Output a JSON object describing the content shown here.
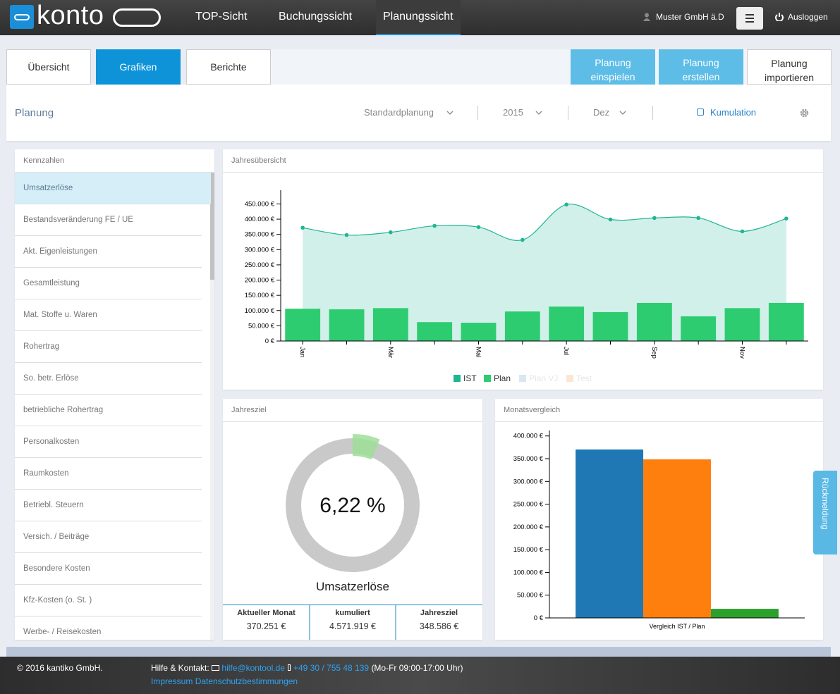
{
  "nav": {
    "brand": "konto",
    "items": [
      "TOP-Sicht",
      "Buchungssicht",
      "Planungssicht"
    ],
    "active": 2,
    "user": "Muster GmbH ä.D",
    "logout": "Ausloggen"
  },
  "tabs": {
    "items": [
      "Übersicht",
      "Grafiken",
      "Berichte"
    ],
    "active": 1
  },
  "actions": [
    {
      "lines": [
        "Planung",
        "einspielen"
      ]
    },
    {
      "lines": [
        "Planung",
        "erstellen"
      ]
    },
    {
      "lines": [
        "Planung",
        "importieren"
      ]
    }
  ],
  "filter": {
    "title": "Planung",
    "plan": "Standardplanung",
    "year": "2015",
    "month": "Dez",
    "cumulation": "Kumulation"
  },
  "sidebar": {
    "title": "Kennzahlen",
    "selected": 0,
    "items": [
      "Umsatzerlöse",
      "Bestandsveränderung FE / UE",
      "Akt. Eigenleistungen",
      "Gesamtleistung",
      "Mat. Stoffe u. Waren",
      "Rohertrag",
      "So. betr. Erlöse",
      "betriebliche Rohertrag",
      "Personalkosten",
      "Raumkosten",
      "Betriebl. Steuern",
      "Versich. / Beiträge",
      "Besondere Kosten",
      "Kfz-Kosten (o. St. )",
      "Werbe- / Reisekosten"
    ]
  },
  "chart_data": [
    {
      "type": "combo",
      "title": "Jahresübersicht",
      "categories": [
        "Jan",
        null,
        "Mär",
        null,
        "Mai",
        null,
        "Jul",
        null,
        "Sep",
        null,
        "Nov",
        null
      ],
      "series": [
        {
          "name": "IST",
          "type": "area",
          "color": "#1fb594",
          "values": [
            372000,
            348000,
            357000,
            378000,
            374000,
            332000,
            448000,
            399000,
            404000,
            404000,
            360000,
            402000
          ]
        },
        {
          "name": "Plan",
          "type": "bar",
          "color": "#2ecc71",
          "values": [
            106000,
            104000,
            108000,
            62000,
            60000,
            97000,
            113000,
            95000,
            125000,
            81000,
            108000,
            125000
          ]
        }
      ],
      "legend_disabled": [
        {
          "name": "Plan VJ",
          "color": "#d8e8f3"
        },
        {
          "name": "Test",
          "color": "#fbe6d4"
        }
      ],
      "ylim": [
        0,
        495000
      ],
      "yticks": [
        {
          "value": 0,
          "label": "0 €"
        },
        {
          "value": 50000,
          "label": "50.000 €"
        },
        {
          "value": 100000,
          "label": "100.000 €"
        },
        {
          "value": 150000,
          "label": "150.000 €"
        },
        {
          "value": 200000,
          "label": "200.000 €"
        },
        {
          "value": 250000,
          "label": "250.000 €"
        },
        {
          "value": 300000,
          "label": "300.000 €"
        },
        {
          "value": 350000,
          "label": "350.000 €"
        },
        {
          "value": 400000,
          "label": "400.000 €"
        },
        {
          "value": 450000,
          "label": "450.000 €"
        }
      ]
    },
    {
      "type": "gauge",
      "title": "Jahresziel",
      "value": 6.22,
      "value_label": "6,22 %",
      "label": "Umsatzerlöse",
      "ylim": [
        0,
        100
      ],
      "color": "#9ede96",
      "track_color": "#c9c9c9",
      "table": {
        "headers": [
          "Aktueller Monat",
          "kumuliert",
          "Jahresziel"
        ],
        "values": [
          "370.251 €",
          "4.571.919 €",
          "348.586 €"
        ]
      }
    },
    {
      "type": "bar",
      "title": "Monatsvergleich",
      "categories": [
        "Vergleich IST / Plan"
      ],
      "series": [
        {
          "color": "#1f77b4",
          "values": [
            370251
          ]
        },
        {
          "color": "#ff7f0e",
          "values": [
            348586
          ]
        },
        {
          "color": "#2ca02c",
          "values": [
            20000
          ]
        }
      ],
      "ylim": [
        0,
        412000
      ],
      "yticks": [
        {
          "value": 0,
          "label": "0 €"
        },
        {
          "value": 50000,
          "label": "50.000 €"
        },
        {
          "value": 100000,
          "label": "100.000 €"
        },
        {
          "value": 150000,
          "label": "150.000 €"
        },
        {
          "value": 200000,
          "label": "200.000 €"
        },
        {
          "value": 250000,
          "label": "250.000 €"
        },
        {
          "value": 300000,
          "label": "300.000 €"
        },
        {
          "value": 350000,
          "label": "350.000 €"
        },
        {
          "value": 400000,
          "label": "400.000 €"
        }
      ]
    }
  ],
  "footer": {
    "copyright": "© 2016 kantiko GmbH.",
    "help": "Hilfe & Kontakt:",
    "email": "hilfe@kontool.de",
    "phone": "+49 30 / 755 48 139",
    "hours": "(Mo-Fr 09:00-17:00 Uhr)",
    "links": [
      "Impressum",
      "Datenschutzbestimmungen"
    ]
  },
  "feedback": "Rückmeldung"
}
